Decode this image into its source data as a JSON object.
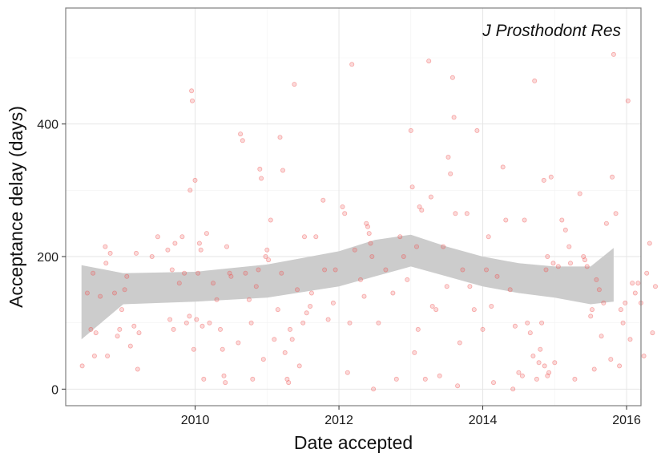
{
  "chart_data": {
    "type": "scatter",
    "annotation": "J Prosthodont Res",
    "xlabel": "Date accepted",
    "ylabel": "Acceptance delay (days)",
    "x_ticks": [
      {
        "value": 2010,
        "label": "2010"
      },
      {
        "value": 2012,
        "label": "2012"
      },
      {
        "value": 2014,
        "label": "2014"
      },
      {
        "value": 2016,
        "label": "2016"
      }
    ],
    "y_ticks": [
      {
        "value": 0,
        "label": "0"
      },
      {
        "value": 200,
        "label": "200"
      },
      {
        "value": 400,
        "label": "400"
      }
    ],
    "xlim": [
      2008.2,
      2016.2
    ],
    "ylim": [
      -25,
      575
    ],
    "grid": true,
    "point_color": "#ef5350",
    "band_color": "#cccccc",
    "series": [
      {
        "values": [
          [
            2008.43,
            35
          ],
          [
            2008.5,
            145
          ],
          [
            2008.55,
            90
          ],
          [
            2008.58,
            175
          ],
          [
            2008.6,
            50
          ],
          [
            2008.62,
            85
          ],
          [
            2008.68,
            140
          ],
          [
            2008.75,
            215
          ],
          [
            2008.76,
            190
          ],
          [
            2008.78,
            50
          ],
          [
            2008.82,
            205
          ],
          [
            2008.88,
            145
          ],
          [
            2008.92,
            80
          ],
          [
            2008.95,
            90
          ],
          [
            2008.98,
            120
          ],
          [
            2009.02,
            150
          ],
          [
            2009.05,
            170
          ],
          [
            2009.1,
            65
          ],
          [
            2009.15,
            95
          ],
          [
            2009.18,
            205
          ],
          [
            2009.2,
            30
          ],
          [
            2009.22,
            85
          ],
          [
            2009.4,
            200
          ],
          [
            2009.48,
            230
          ],
          [
            2009.62,
            210
          ],
          [
            2009.65,
            105
          ],
          [
            2009.68,
            180
          ],
          [
            2009.7,
            90
          ],
          [
            2009.72,
            220
          ],
          [
            2009.78,
            160
          ],
          [
            2009.82,
            230
          ],
          [
            2009.85,
            175
          ],
          [
            2009.88,
            100
          ],
          [
            2009.92,
            110
          ],
          [
            2009.93,
            300
          ],
          [
            2009.95,
            450
          ],
          [
            2009.96,
            435
          ],
          [
            2009.98,
            60
          ],
          [
            2010.0,
            315
          ],
          [
            2010.02,
            105
          ],
          [
            2010.04,
            175
          ],
          [
            2010.06,
            220
          ],
          [
            2010.08,
            210
          ],
          [
            2010.1,
            95
          ],
          [
            2010.12,
            15
          ],
          [
            2010.16,
            235
          ],
          [
            2010.2,
            100
          ],
          [
            2010.25,
            160
          ],
          [
            2010.3,
            135
          ],
          [
            2010.35,
            90
          ],
          [
            2010.38,
            60
          ],
          [
            2010.4,
            20
          ],
          [
            2010.42,
            10
          ],
          [
            2010.44,
            215
          ],
          [
            2010.48,
            175
          ],
          [
            2010.5,
            170
          ],
          [
            2010.6,
            70
          ],
          [
            2010.63,
            385
          ],
          [
            2010.66,
            375
          ],
          [
            2010.7,
            175
          ],
          [
            2010.75,
            135
          ],
          [
            2010.78,
            100
          ],
          [
            2010.8,
            15
          ],
          [
            2010.85,
            155
          ],
          [
            2010.88,
            180
          ],
          [
            2010.9,
            332
          ],
          [
            2010.92,
            318
          ],
          [
            2010.95,
            45
          ],
          [
            2010.98,
            200
          ],
          [
            2011.0,
            210
          ],
          [
            2011.02,
            195
          ],
          [
            2011.05,
            255
          ],
          [
            2011.1,
            75
          ],
          [
            2011.15,
            120
          ],
          [
            2011.18,
            380
          ],
          [
            2011.2,
            175
          ],
          [
            2011.22,
            330
          ],
          [
            2011.25,
            55
          ],
          [
            2011.28,
            15
          ],
          [
            2011.3,
            10
          ],
          [
            2011.32,
            90
          ],
          [
            2011.35,
            75
          ],
          [
            2011.38,
            460
          ],
          [
            2011.42,
            150
          ],
          [
            2011.45,
            35
          ],
          [
            2011.5,
            100
          ],
          [
            2011.52,
            230
          ],
          [
            2011.55,
            115
          ],
          [
            2011.6,
            125
          ],
          [
            2011.62,
            145
          ],
          [
            2011.68,
            230
          ],
          [
            2011.78,
            285
          ],
          [
            2011.8,
            180
          ],
          [
            2011.85,
            105
          ],
          [
            2011.92,
            130
          ],
          [
            2011.95,
            180
          ],
          [
            2012.05,
            275
          ],
          [
            2012.08,
            265
          ],
          [
            2012.12,
            25
          ],
          [
            2012.15,
            100
          ],
          [
            2012.18,
            490
          ],
          [
            2012.22,
            210
          ],
          [
            2012.3,
            165
          ],
          [
            2012.35,
            140
          ],
          [
            2012.38,
            250
          ],
          [
            2012.4,
            245
          ],
          [
            2012.42,
            235
          ],
          [
            2012.44,
            220
          ],
          [
            2012.46,
            200
          ],
          [
            2012.48,
            0
          ],
          [
            2012.55,
            100
          ],
          [
            2012.65,
            180
          ],
          [
            2012.75,
            145
          ],
          [
            2012.8,
            15
          ],
          [
            2012.85,
            230
          ],
          [
            2012.9,
            200
          ],
          [
            2012.95,
            165
          ],
          [
            2013.0,
            390
          ],
          [
            2013.02,
            305
          ],
          [
            2013.05,
            55
          ],
          [
            2013.08,
            215
          ],
          [
            2013.1,
            90
          ],
          [
            2013.12,
            275
          ],
          [
            2013.15,
            270
          ],
          [
            2013.2,
            15
          ],
          [
            2013.25,
            495
          ],
          [
            2013.28,
            290
          ],
          [
            2013.3,
            125
          ],
          [
            2013.35,
            120
          ],
          [
            2013.4,
            20
          ],
          [
            2013.45,
            215
          ],
          [
            2013.5,
            155
          ],
          [
            2013.52,
            350
          ],
          [
            2013.55,
            325
          ],
          [
            2013.58,
            470
          ],
          [
            2013.6,
            410
          ],
          [
            2013.62,
            265
          ],
          [
            2013.65,
            5
          ],
          [
            2013.68,
            70
          ],
          [
            2013.72,
            180
          ],
          [
            2013.78,
            265
          ],
          [
            2013.82,
            155
          ],
          [
            2013.88,
            120
          ],
          [
            2013.92,
            390
          ],
          [
            2014.0,
            90
          ],
          [
            2014.05,
            180
          ],
          [
            2014.08,
            230
          ],
          [
            2014.12,
            125
          ],
          [
            2014.15,
            10
          ],
          [
            2014.2,
            170
          ],
          [
            2014.28,
            335
          ],
          [
            2014.32,
            255
          ],
          [
            2014.38,
            150
          ],
          [
            2014.42,
            0
          ],
          [
            2014.45,
            95
          ],
          [
            2014.5,
            25
          ],
          [
            2014.55,
            20
          ],
          [
            2014.58,
            255
          ],
          [
            2014.62,
            100
          ],
          [
            2014.66,
            85
          ],
          [
            2014.7,
            50
          ],
          [
            2014.72,
            465
          ],
          [
            2014.75,
            15
          ],
          [
            2014.78,
            40
          ],
          [
            2014.8,
            60
          ],
          [
            2014.82,
            100
          ],
          [
            2014.86,
            35
          ],
          [
            2014.9,
            20
          ],
          [
            2014.92,
            25
          ],
          [
            2014.95,
            320
          ],
          [
            2014.98,
            190
          ],
          [
            2015.0,
            40
          ],
          [
            2014.85,
            315
          ],
          [
            2014.88,
            180
          ],
          [
            2014.9,
            200
          ],
          [
            2015.05,
            185
          ],
          [
            2015.1,
            255
          ],
          [
            2015.15,
            240
          ],
          [
            2015.2,
            215
          ],
          [
            2015.22,
            190
          ],
          [
            2015.28,
            15
          ],
          [
            2015.35,
            295
          ],
          [
            2015.4,
            200
          ],
          [
            2015.42,
            195
          ],
          [
            2015.45,
            185
          ],
          [
            2015.5,
            110
          ],
          [
            2015.52,
            120
          ],
          [
            2015.55,
            30
          ],
          [
            2015.58,
            165
          ],
          [
            2015.62,
            150
          ],
          [
            2015.65,
            80
          ],
          [
            2015.68,
            130
          ],
          [
            2015.72,
            250
          ],
          [
            2015.78,
            45
          ],
          [
            2015.8,
            320
          ],
          [
            2015.82,
            505
          ],
          [
            2015.85,
            265
          ],
          [
            2015.9,
            35
          ],
          [
            2015.92,
            120
          ],
          [
            2015.95,
            100
          ],
          [
            2015.98,
            130
          ],
          [
            2016.02,
            435
          ],
          [
            2016.05,
            75
          ],
          [
            2016.08,
            160
          ],
          [
            2016.12,
            145
          ],
          [
            2016.16,
            160
          ],
          [
            2016.2,
            130
          ],
          [
            2016.24,
            50
          ],
          [
            2016.28,
            175
          ],
          [
            2016.32,
            220
          ],
          [
            2016.36,
            85
          ],
          [
            2016.4,
            155
          ]
        ]
      }
    ],
    "smooth": {
      "x": [
        2008.42,
        2009.0,
        2010.0,
        2011.0,
        2012.0,
        2012.5,
        2013.0,
        2013.5,
        2014.0,
        2014.5,
        2015.0,
        2015.5,
        2015.82
      ],
      "lower": [
        75,
        128,
        132,
        138,
        155,
        170,
        185,
        170,
        155,
        145,
        138,
        128,
        132
      ],
      "upper": [
        187,
        175,
        177,
        188,
        208,
        225,
        233,
        215,
        200,
        190,
        185,
        185,
        213
      ]
    }
  }
}
